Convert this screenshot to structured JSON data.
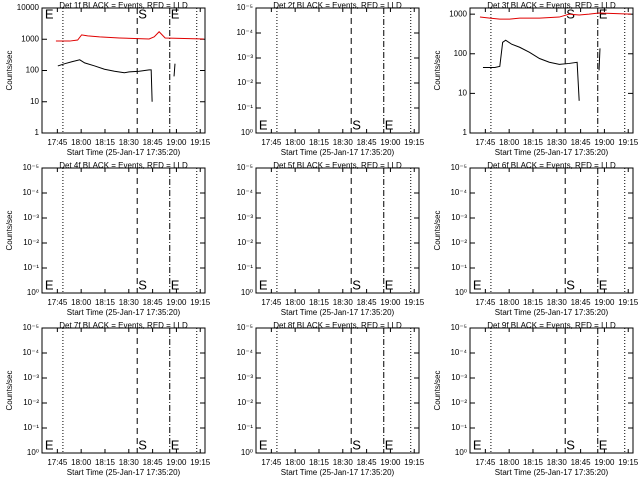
{
  "chart_data": [
    {
      "type": "line",
      "title": "Det 1f BLACK = Events, RED = LLD",
      "ylabel": "Counts/sec",
      "xlabel": "Start Time (25-Jan-17 17:35:20)",
      "xlim": [
        1055.33,
        1158
      ],
      "xticks": [
        {
          "value": 1065,
          "label": "17:45"
        },
        {
          "value": 1080,
          "label": "18:00"
        },
        {
          "value": 1095,
          "label": "18:15"
        },
        {
          "value": 1110,
          "label": "18:30"
        },
        {
          "value": 1125,
          "label": "18:45"
        },
        {
          "value": 1140,
          "label": "19:00"
        },
        {
          "value": 1155,
          "label": "19:15"
        }
      ],
      "ylim": [
        1,
        10000
      ],
      "yticks": [
        1,
        10,
        100,
        1000,
        10000
      ],
      "log_y": true,
      "marker_label_pos": "top",
      "markers": [
        {
          "x": 1056.5,
          "label": "E",
          "style": "none"
        },
        {
          "x": 1068.5,
          "style": "dotted"
        },
        {
          "x": 1115.3,
          "label": "S",
          "style": "dashed"
        },
        {
          "x": 1135.8,
          "label": "E",
          "style": "dashdot"
        },
        {
          "x": 1152.8,
          "style": "dotted"
        }
      ],
      "series": [
        {
          "color": "#000000",
          "x": [
            1065.3,
            1069.7,
            1074.1,
            1079.1,
            1082.2,
            1088.5,
            1094.7,
            1101.0,
            1107.2,
            1110.3,
            1116.6,
            1122.8,
            1124.1,
            1124.7,
            null,
            1138.5,
            1139.1
          ],
          "values": [
            140,
            165,
            190,
            220,
            175,
            140,
            110,
            95,
            85,
            90,
            95,
            105,
            105,
            10,
            null,
            65,
            165
          ]
        },
        {
          "color": "#e00000",
          "x": [
            1064.1,
            1072.8,
            1077.8,
            1080.3,
            1084.1,
            1091.6,
            1104.1,
            1122.8,
            1126.0,
            1129.1,
            1131.0,
            1132.9,
            1157.2
          ],
          "values": [
            875,
            875,
            945,
            1380,
            1280,
            1190,
            1100,
            1020,
            1190,
            1740,
            1380,
            1100,
            1020
          ]
        }
      ]
    },
    {
      "type": "line",
      "title": "Det 2f BLACK = Events, RED = LLD",
      "xlabel": "Start Time (25-Jan-17 17:35:20)",
      "xlim": [
        1055.33,
        1158
      ],
      "xticks": [
        {
          "value": 1065,
          "label": "17:45"
        },
        {
          "value": 1080,
          "label": "18:00"
        },
        {
          "value": 1095,
          "label": "18:15"
        },
        {
          "value": 1110,
          "label": "18:30"
        },
        {
          "value": 1125,
          "label": "18:45"
        },
        {
          "value": 1140,
          "label": "19:00"
        },
        {
          "value": 1155,
          "label": "19:15"
        }
      ],
      "ylim": [
        1,
        1e-05
      ],
      "yticks": [
        {
          "value": 1,
          "label": "10⁰"
        },
        {
          "value": 0.1,
          "label": "10⁻¹"
        },
        {
          "value": 0.01,
          "label": "10⁻²"
        },
        {
          "value": 0.001,
          "label": "10⁻³"
        },
        {
          "value": 0.0001,
          "label": "10⁻⁴"
        },
        {
          "value": 1e-05,
          "label": "10⁻⁵"
        }
      ],
      "log_y": true,
      "marker_label_pos": "bottom",
      "markers": [
        {
          "x": 1056.5,
          "label": "E",
          "style": "none"
        },
        {
          "x": 1068.5,
          "style": "dotted"
        },
        {
          "x": 1115.3,
          "label": "S",
          "style": "dashed"
        },
        {
          "x": 1135.8,
          "label": "E",
          "style": "dashdot"
        },
        {
          "x": 1152.8,
          "style": "dotted"
        }
      ]
    },
    {
      "type": "line",
      "title": "Det 3f BLACK = Events, RED = LLD",
      "ylabel": "Counts/sec",
      "xlabel": "Start Time (25-Jan-17 17:35:20)",
      "xlim": [
        1055.33,
        1158
      ],
      "xticks": [
        {
          "value": 1065,
          "label": "17:45"
        },
        {
          "value": 1080,
          "label": "18:00"
        },
        {
          "value": 1095,
          "label": "18:15"
        },
        {
          "value": 1110,
          "label": "18:30"
        },
        {
          "value": 1125,
          "label": "18:45"
        },
        {
          "value": 1140,
          "label": "19:00"
        },
        {
          "value": 1155,
          "label": "19:15"
        }
      ],
      "ylim": [
        1,
        1430
      ],
      "yticks": [
        1,
        10,
        100,
        1000
      ],
      "log_y": true,
      "marker_label_pos": "top",
      "markers": [
        {
          "x": 1068.5,
          "style": "dotted"
        },
        {
          "x": 1115.3,
          "label": "S",
          "style": "dashed"
        },
        {
          "x": 1135.8,
          "label": "E",
          "style": "dashdot"
        },
        {
          "x": 1152.8,
          "style": "dotted"
        }
      ],
      "series": [
        {
          "color": "#000000",
          "x": [
            1063.5,
            1071.0,
            1074.1,
            1075.9,
            1077.8,
            1081.6,
            1086.6,
            1092.8,
            1099.1,
            1105.3,
            1111.6,
            1117.8,
            1122.8,
            1124.1,
            null,
            1136.6,
            1137.2
          ],
          "values": [
            45,
            45,
            48,
            195,
            220,
            174,
            146,
            109,
            76,
            61,
            54,
            57,
            61,
            6.5,
            null,
            38,
            137
          ]
        },
        {
          "color": "#e00000",
          "x": [
            1061.6,
            1067.8,
            1074.1,
            1080.3,
            1086.6,
            1099.1,
            1111.6,
            1117.8,
            1124.1,
            1130.3,
            1136.6,
            1156.6
          ],
          "values": [
            845,
            795,
            750,
            750,
            795,
            795,
            845,
            1000,
            950,
            1000,
            1070,
            1000
          ]
        }
      ]
    },
    {
      "type": "line",
      "title": "Det 4f BLACK = Events, RED = LLD",
      "ylabel": "Counts/sec",
      "xlabel": "Start Time (25-Jan-17 17:35:20)",
      "xlim": [
        1055.33,
        1158
      ],
      "xticks": [
        {
          "value": 1065,
          "label": "17:45"
        },
        {
          "value": 1080,
          "label": "18:00"
        },
        {
          "value": 1095,
          "label": "18:15"
        },
        {
          "value": 1110,
          "label": "18:30"
        },
        {
          "value": 1125,
          "label": "18:45"
        },
        {
          "value": 1140,
          "label": "19:00"
        },
        {
          "value": 1155,
          "label": "19:15"
        }
      ],
      "ylim": [
        1,
        1e-05
      ],
      "yticks": [
        {
          "value": 1,
          "label": "10⁰"
        },
        {
          "value": 0.1,
          "label": "10⁻¹"
        },
        {
          "value": 0.01,
          "label": "10⁻²"
        },
        {
          "value": 0.001,
          "label": "10⁻³"
        },
        {
          "value": 0.0001,
          "label": "10⁻⁴"
        },
        {
          "value": 1e-05,
          "label": "10⁻⁵"
        }
      ],
      "log_y": true,
      "marker_label_pos": "bottom",
      "markers": [
        {
          "x": 1056.5,
          "label": "E",
          "style": "none"
        },
        {
          "x": 1068.5,
          "style": "dotted"
        },
        {
          "x": 1115.3,
          "label": "S",
          "style": "dashed"
        },
        {
          "x": 1135.8,
          "label": "E",
          "style": "dashdot"
        },
        {
          "x": 1152.8,
          "style": "dotted"
        }
      ]
    },
    {
      "type": "line",
      "title": "Det 5f BLACK = Events, RED = LLD",
      "xlabel": "Start Time (25-Jan-17 17:35:20)",
      "xlim": [
        1055.33,
        1158
      ],
      "xticks": [
        {
          "value": 1065,
          "label": "17:45"
        },
        {
          "value": 1080,
          "label": "18:00"
        },
        {
          "value": 1095,
          "label": "18:15"
        },
        {
          "value": 1110,
          "label": "18:30"
        },
        {
          "value": 1125,
          "label": "18:45"
        },
        {
          "value": 1140,
          "label": "19:00"
        },
        {
          "value": 1155,
          "label": "19:15"
        }
      ],
      "ylim": [
        1,
        1e-05
      ],
      "yticks": [
        {
          "value": 1,
          "label": "10⁰"
        },
        {
          "value": 0.1,
          "label": "10⁻¹"
        },
        {
          "value": 0.01,
          "label": "10⁻²"
        },
        {
          "value": 0.001,
          "label": "10⁻³"
        },
        {
          "value": 0.0001,
          "label": "10⁻⁴"
        },
        {
          "value": 1e-05,
          "label": "10⁻⁵"
        }
      ],
      "log_y": true,
      "marker_label_pos": "bottom",
      "markers": [
        {
          "x": 1056.5,
          "label": "E",
          "style": "none"
        },
        {
          "x": 1068.5,
          "style": "dotted"
        },
        {
          "x": 1115.3,
          "label": "S",
          "style": "dashed"
        },
        {
          "x": 1135.8,
          "label": "E",
          "style": "dashdot"
        },
        {
          "x": 1152.8,
          "style": "dotted"
        }
      ]
    },
    {
      "type": "line",
      "title": "Det 6f BLACK = Events, RED = LLD",
      "ylabel": "Counts/sec",
      "xlabel": "Start Time (25-Jan-17 17:35:20)",
      "xlim": [
        1055.33,
        1158
      ],
      "xticks": [
        {
          "value": 1065,
          "label": "17:45"
        },
        {
          "value": 1080,
          "label": "18:00"
        },
        {
          "value": 1095,
          "label": "18:15"
        },
        {
          "value": 1110,
          "label": "18:30"
        },
        {
          "value": 1125,
          "label": "18:45"
        },
        {
          "value": 1140,
          "label": "19:00"
        },
        {
          "value": 1155,
          "label": "19:15"
        }
      ],
      "ylim": [
        1,
        1e-05
      ],
      "yticks": [
        {
          "value": 1,
          "label": "10⁰"
        },
        {
          "value": 0.1,
          "label": "10⁻¹"
        },
        {
          "value": 0.01,
          "label": "10⁻²"
        },
        {
          "value": 0.001,
          "label": "10⁻³"
        },
        {
          "value": 0.0001,
          "label": "10⁻⁴"
        },
        {
          "value": 1e-05,
          "label": "10⁻⁵"
        }
      ],
      "log_y": true,
      "marker_label_pos": "bottom",
      "markers": [
        {
          "x": 1056.5,
          "label": "E",
          "style": "none"
        },
        {
          "x": 1068.5,
          "style": "dotted"
        },
        {
          "x": 1115.3,
          "label": "S",
          "style": "dashed"
        },
        {
          "x": 1135.8,
          "label": "E",
          "style": "dashdot"
        },
        {
          "x": 1152.8,
          "style": "dotted"
        }
      ]
    },
    {
      "type": "line",
      "title": "Det 7f BLACK = Events, RED = LLD",
      "ylabel": "Counts/sec",
      "xlabel": "Start Time (25-Jan-17 17:35:20)",
      "xlim": [
        1055.33,
        1158
      ],
      "xticks": [
        {
          "value": 1065,
          "label": "17:45"
        },
        {
          "value": 1080,
          "label": "18:00"
        },
        {
          "value": 1095,
          "label": "18:15"
        },
        {
          "value": 1110,
          "label": "18:30"
        },
        {
          "value": 1125,
          "label": "18:45"
        },
        {
          "value": 1140,
          "label": "19:00"
        },
        {
          "value": 1155,
          "label": "19:15"
        }
      ],
      "ylim": [
        1,
        1e-05
      ],
      "yticks": [
        {
          "value": 1,
          "label": "10⁰"
        },
        {
          "value": 0.1,
          "label": "10⁻¹"
        },
        {
          "value": 0.01,
          "label": "10⁻²"
        },
        {
          "value": 0.001,
          "label": "10⁻³"
        },
        {
          "value": 0.0001,
          "label": "10⁻⁴"
        },
        {
          "value": 1e-05,
          "label": "10⁻⁵"
        }
      ],
      "log_y": true,
      "marker_label_pos": "bottom",
      "markers": [
        {
          "x": 1056.5,
          "label": "E",
          "style": "none"
        },
        {
          "x": 1068.5,
          "style": "dotted"
        },
        {
          "x": 1115.3,
          "label": "S",
          "style": "dashed"
        },
        {
          "x": 1135.8,
          "label": "E",
          "style": "dashdot"
        },
        {
          "x": 1152.8,
          "style": "dotted"
        }
      ]
    },
    {
      "type": "line",
      "title": "Det 8f BLACK = Events, RED = LLD",
      "xlabel": "Start Time (25-Jan-17 17:35:20)",
      "xlim": [
        1055.33,
        1158
      ],
      "xticks": [
        {
          "value": 1065,
          "label": "17:45"
        },
        {
          "value": 1080,
          "label": "18:00"
        },
        {
          "value": 1095,
          "label": "18:15"
        },
        {
          "value": 1110,
          "label": "18:30"
        },
        {
          "value": 1125,
          "label": "18:45"
        },
        {
          "value": 1140,
          "label": "19:00"
        },
        {
          "value": 1155,
          "label": "19:15"
        }
      ],
      "ylim": [
        1,
        1e-05
      ],
      "yticks": [
        {
          "value": 1,
          "label": "10⁰"
        },
        {
          "value": 0.1,
          "label": "10⁻¹"
        },
        {
          "value": 0.01,
          "label": "10⁻²"
        },
        {
          "value": 0.001,
          "label": "10⁻³"
        },
        {
          "value": 0.0001,
          "label": "10⁻⁴"
        },
        {
          "value": 1e-05,
          "label": "10⁻⁵"
        }
      ],
      "log_y": true,
      "marker_label_pos": "bottom",
      "markers": [
        {
          "x": 1056.5,
          "label": "E",
          "style": "none"
        },
        {
          "x": 1068.5,
          "style": "dotted"
        },
        {
          "x": 1115.3,
          "label": "S",
          "style": "dashed"
        },
        {
          "x": 1135.8,
          "label": "E",
          "style": "dashdot"
        },
        {
          "x": 1152.8,
          "style": "dotted"
        }
      ]
    },
    {
      "type": "line",
      "title": "Det 9f BLACK = Events, RED = LLD",
      "ylabel": "Counts/sec",
      "xlabel": "Start Time (25-Jan-17 17:35:20)",
      "xlim": [
        1055.33,
        1158
      ],
      "xticks": [
        {
          "value": 1065,
          "label": "17:45"
        },
        {
          "value": 1080,
          "label": "18:00"
        },
        {
          "value": 1095,
          "label": "18:15"
        },
        {
          "value": 1110,
          "label": "18:30"
        },
        {
          "value": 1125,
          "label": "18:45"
        },
        {
          "value": 1140,
          "label": "19:00"
        },
        {
          "value": 1155,
          "label": "19:15"
        }
      ],
      "ylim": [
        1,
        1e-05
      ],
      "yticks": [
        {
          "value": 1,
          "label": "10⁰"
        },
        {
          "value": 0.1,
          "label": "10⁻¹"
        },
        {
          "value": 0.01,
          "label": "10⁻²"
        },
        {
          "value": 0.001,
          "label": "10⁻³"
        },
        {
          "value": 0.0001,
          "label": "10⁻⁴"
        },
        {
          "value": 1e-05,
          "label": "10⁻⁵"
        }
      ],
      "log_y": true,
      "marker_label_pos": "bottom",
      "markers": [
        {
          "x": 1056.5,
          "label": "E",
          "style": "none"
        },
        {
          "x": 1068.5,
          "style": "dotted"
        },
        {
          "x": 1115.3,
          "label": "S",
          "style": "dashed"
        },
        {
          "x": 1135.8,
          "label": "E",
          "style": "dashdot"
        },
        {
          "x": 1152.8,
          "style": "dotted"
        }
      ]
    }
  ]
}
